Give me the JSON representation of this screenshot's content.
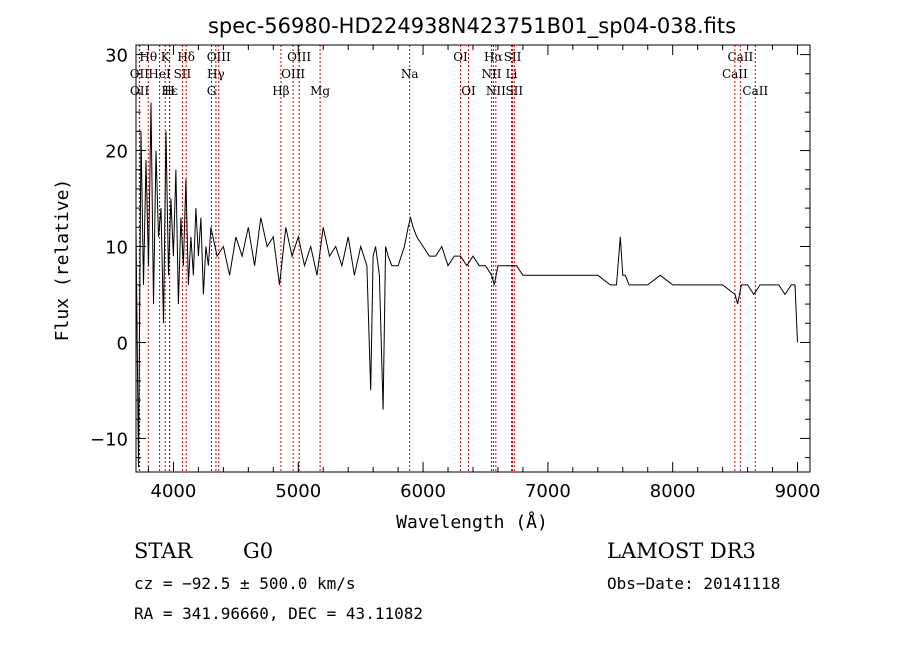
{
  "chart_data": {
    "type": "line",
    "title": "spec-56980-HD224938N423751B01_sp04-038.fits",
    "xlabel": "Wavelength (Å)",
    "ylabel": "Flux (relative)",
    "xlim": [
      3700,
      9100
    ],
    "ylim": [
      -13.5,
      31
    ],
    "x_ticks": [
      4000,
      5000,
      6000,
      7000,
      8000,
      9000
    ],
    "y_ticks": [
      -10,
      0,
      10,
      20,
      30
    ],
    "x_tick_labels": [
      "4000",
      "5000",
      "6000",
      "7000",
      "8000",
      "9000"
    ],
    "y_tick_labels": [
      "−10",
      "0",
      "10",
      "20",
      "30"
    ],
    "grid": false,
    "series": [
      {
        "x": [
          3700,
          3720,
          3740,
          3760,
          3780,
          3800,
          3820,
          3840,
          3860,
          3880,
          3900,
          3920,
          3940,
          3960,
          3980,
          4000,
          4020,
          4040,
          4060,
          4080,
          4100,
          4120,
          4140,
          4160,
          4180,
          4200,
          4220,
          4240,
          4260,
          4280,
          4300,
          4350,
          4400,
          4450,
          4500,
          4550,
          4600,
          4650,
          4700,
          4750,
          4800,
          4850,
          4900,
          4950,
          5000,
          5050,
          5100,
          5150,
          5200,
          5250,
          5300,
          5350,
          5400,
          5450,
          5500,
          5550,
          5580,
          5600,
          5620,
          5650,
          5680,
          5700,
          5720,
          5750,
          5800,
          5850,
          5880,
          5900,
          5920,
          5950,
          6000,
          6050,
          6100,
          6150,
          6200,
          6250,
          6300,
          6350,
          6400,
          6450,
          6500,
          6550,
          6570,
          6600,
          6650,
          6700,
          6750,
          6800,
          6900,
          7000,
          7100,
          7200,
          7300,
          7400,
          7500,
          7550,
          7580,
          7600,
          7620,
          7650,
          7700,
          7800,
          7900,
          8000,
          8100,
          8200,
          8300,
          8400,
          8500,
          8520,
          8550,
          8600,
          8650,
          8700,
          8750,
          8800,
          8850,
          8900,
          8950,
          8980,
          9000
        ],
        "y": [
          12,
          -13,
          22,
          6,
          19,
          8,
          25,
          4,
          20,
          11,
          14,
          2,
          22,
          7,
          15,
          9,
          18,
          4,
          13,
          8,
          17,
          6,
          11,
          7,
          14,
          9,
          13,
          5,
          10,
          8,
          12,
          9,
          10,
          7,
          11,
          9,
          12,
          8,
          13,
          10,
          11,
          6,
          12,
          9,
          11,
          8,
          10,
          7,
          12,
          9,
          10,
          8,
          11,
          7,
          10,
          8,
          -5,
          9,
          10,
          7,
          -7,
          10,
          9,
          8,
          8,
          10,
          12,
          13,
          12,
          11,
          10,
          9,
          9,
          10,
          8,
          9,
          9,
          8,
          9,
          8,
          8,
          7,
          6,
          8,
          8,
          8,
          8,
          7,
          7,
          7,
          7,
          7,
          7,
          7,
          6,
          6,
          11,
          7,
          7,
          6,
          6,
          6,
          7,
          6,
          6,
          6,
          6,
          6,
          5,
          4,
          6,
          6,
          5,
          6,
          6,
          6,
          6,
          5,
          6,
          6,
          0
        ]
      }
    ],
    "line_annotations": [
      {
        "label": "Hθ",
        "x": 3798,
        "row": 0
      },
      {
        "label": "K",
        "x": 3934,
        "row": 0
      },
      {
        "label": "Hδ",
        "x": 4102,
        "row": 0
      },
      {
        "label": "OIII",
        "x": 4363,
        "row": 0
      },
      {
        "label": "OIII",
        "x": 5007,
        "row": 0
      },
      {
        "label": "OI",
        "x": 6300,
        "row": 0
      },
      {
        "label": "Hα",
        "x": 6563,
        "row": 0
      },
      {
        "label": "SII",
        "x": 6717,
        "row": 0
      },
      {
        "label": "CaII",
        "x": 8542,
        "row": 0
      },
      {
        "label": "OII",
        "x": 3727,
        "row": 1
      },
      {
        "label": "HeI",
        "x": 3889,
        "row": 1
      },
      {
        "label": "SII",
        "x": 4072,
        "row": 1
      },
      {
        "label": "Hγ",
        "x": 4340,
        "row": 1
      },
      {
        "label": "OIII",
        "x": 4959,
        "row": 1
      },
      {
        "label": "Na",
        "x": 5893,
        "row": 1
      },
      {
        "label": "NII",
        "x": 6548,
        "row": 1
      },
      {
        "label": "Li",
        "x": 6708,
        "row": 1
      },
      {
        "label": "CaII",
        "x": 8498,
        "row": 1
      },
      {
        "label": "OII",
        "x": 3729,
        "row": 2
      },
      {
        "label": "Hε",
        "x": 3970,
        "row": 2
      },
      {
        "label": "H",
        "x": 3968,
        "row": 2
      },
      {
        "label": "G",
        "x": 4305,
        "row": 2
      },
      {
        "label": "Hβ",
        "x": 4861,
        "row": 2
      },
      {
        "label": "Mg",
        "x": 5175,
        "row": 2
      },
      {
        "label": "OI",
        "x": 6364,
        "row": 2
      },
      {
        "label": "NII",
        "x": 6583,
        "row": 2
      },
      {
        "label": "SII",
        "x": 6731,
        "row": 2
      },
      {
        "label": "CaII",
        "x": 8662,
        "row": 2
      }
    ],
    "annotation_line_color": "#cc0000"
  },
  "info": {
    "object_class": "STAR",
    "subclass": "G0",
    "survey": "LAMOST DR3",
    "redshift": "cz = −92.5 ± 500.0 km/s",
    "obs_date": "Obs−Date: 20141118",
    "coords": "RA = 341.96660, DEC =  43.11082"
  }
}
